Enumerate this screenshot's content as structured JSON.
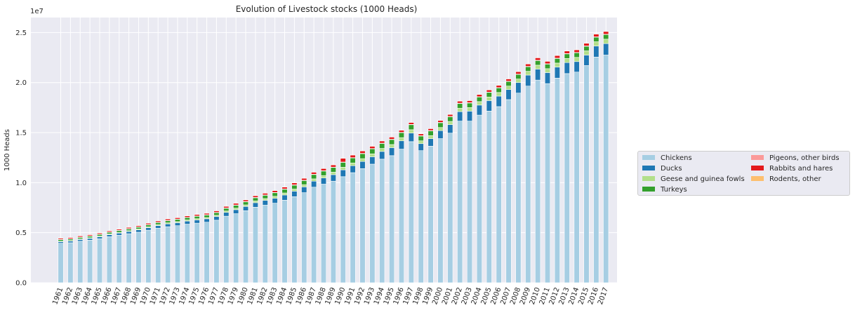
{
  "chart_data": {
    "type": "bar",
    "stacked": true,
    "title": "Evolution of Livestock stocks (1000 Heads)",
    "xlabel": "",
    "ylabel": "1000 Heads",
    "y_scale_label": "1e7",
    "ylim": [
      0,
      26500000
    ],
    "yticks": [
      0,
      5000000,
      10000000,
      15000000,
      20000000,
      25000000
    ],
    "ytick_labels": [
      "0.0",
      "0.5",
      "1.0",
      "1.5",
      "2.0",
      "2.5"
    ],
    "grid": true,
    "legend_position": "right",
    "categories": [
      "1961",
      "1962",
      "1963",
      "1964",
      "1965",
      "1966",
      "1967",
      "1968",
      "1969",
      "1970",
      "1971",
      "1972",
      "1973",
      "1974",
      "1975",
      "1976",
      "1977",
      "1978",
      "1979",
      "1980",
      "1981",
      "1982",
      "1983",
      "1984",
      "1985",
      "1986",
      "1987",
      "1988",
      "1989",
      "1990",
      "1991",
      "1992",
      "1993",
      "1994",
      "1995",
      "1996",
      "1997",
      "1998",
      "1999",
      "2000",
      "2001",
      "2002",
      "2003",
      "2004",
      "2005",
      "2006",
      "2007",
      "2008",
      "2009",
      "2010",
      "2011",
      "2012",
      "2013",
      "2014",
      "2015",
      "2016",
      "2017"
    ],
    "series": [
      {
        "name": "Chickens",
        "color": "#a6cee3",
        "values": [
          3950000,
          4000000,
          4150000,
          4250000,
          4400000,
          4600000,
          4750000,
          4900000,
          5050000,
          5250000,
          5450000,
          5600000,
          5700000,
          5850000,
          5950000,
          6050000,
          6250000,
          6650000,
          6900000,
          7200000,
          7550000,
          7750000,
          7950000,
          8250000,
          8600000,
          9000000,
          9550000,
          9850000,
          10150000,
          10600000,
          11000000,
          11400000,
          11850000,
          12350000,
          12700000,
          13350000,
          14100000,
          13200000,
          13650000,
          14400000,
          14950000,
          16150000,
          16150000,
          16750000,
          17150000,
          17600000,
          18300000,
          18950000,
          19650000,
          20250000,
          19900000,
          20450000,
          20900000,
          21050000,
          21700000,
          22550000,
          22750000
        ]
      },
      {
        "name": "Ducks",
        "color": "#1f78b4",
        "values": [
          150000,
          160000,
          170000,
          180000,
          190000,
          200000,
          210000,
          220000,
          230000,
          250000,
          260000,
          280000,
          300000,
          310000,
          330000,
          340000,
          360000,
          380000,
          400000,
          420000,
          450000,
          480000,
          500000,
          520000,
          550000,
          580000,
          600000,
          620000,
          650000,
          680000,
          700000,
          720000,
          740000,
          770000,
          800000,
          830000,
          860000,
          700000,
          750000,
          800000,
          850000,
          950000,
          1000000,
          1000000,
          1050000,
          1050000,
          1000000,
          1050000,
          1100000,
          1100000,
          1100000,
          1100000,
          1100000,
          1050000,
          1050000,
          1100000,
          1150000
        ]
      },
      {
        "name": "Geese and guinea fowls",
        "color": "#b2df8a",
        "values": [
          50000,
          55000,
          60000,
          65000,
          70000,
          75000,
          80000,
          85000,
          90000,
          95000,
          100000,
          105000,
          110000,
          115000,
          120000,
          125000,
          130000,
          140000,
          150000,
          160000,
          170000,
          180000,
          190000,
          200000,
          210000,
          220000,
          230000,
          240000,
          250000,
          260000,
          270000,
          280000,
          290000,
          300000,
          310000,
          320000,
          330000,
          280000,
          300000,
          310000,
          320000,
          340000,
          350000,
          350000,
          360000,
          360000,
          350000,
          360000,
          380000,
          390000,
          390000,
          400000,
          410000,
          420000,
          420000,
          430000,
          440000
        ]
      },
      {
        "name": "Turkeys",
        "color": "#33a02c",
        "values": [
          150000,
          150000,
          150000,
          160000,
          160000,
          160000,
          170000,
          170000,
          180000,
          190000,
          200000,
          210000,
          220000,
          230000,
          240000,
          250000,
          260000,
          270000,
          290000,
          300000,
          320000,
          330000,
          350000,
          370000,
          390000,
          410000,
          430000,
          450000,
          470000,
          490000,
          500000,
          500000,
          500000,
          500000,
          500000,
          500000,
          500000,
          480000,
          480000,
          480000,
          470000,
          470000,
          460000,
          460000,
          460000,
          460000,
          460000,
          460000,
          460000,
          460000,
          460000,
          460000,
          460000,
          460000,
          460000,
          460000,
          460000
        ]
      },
      {
        "name": "Pigeons, other birds",
        "color": "#fb9a99",
        "values": [
          30000,
          30000,
          30000,
          30000,
          30000,
          30000,
          30000,
          30000,
          30000,
          30000,
          30000,
          30000,
          30000,
          30000,
          30000,
          30000,
          30000,
          30000,
          30000,
          30000,
          30000,
          30000,
          30000,
          30000,
          30000,
          30000,
          30000,
          30000,
          30000,
          30000,
          30000,
          30000,
          30000,
          30000,
          30000,
          30000,
          30000,
          30000,
          30000,
          30000,
          30000,
          30000,
          30000,
          30000,
          30000,
          30000,
          30000,
          30000,
          30000,
          30000,
          30000,
          30000,
          30000,
          30000,
          30000,
          30000,
          30000
        ]
      },
      {
        "name": "Rabbits and hares",
        "color": "#e31a1c",
        "values": [
          120000,
          120000,
          120000,
          120000,
          120000,
          120000,
          120000,
          130000,
          130000,
          130000,
          140000,
          140000,
          140000,
          150000,
          150000,
          150000,
          160000,
          160000,
          170000,
          170000,
          180000,
          180000,
          190000,
          190000,
          200000,
          200000,
          210000,
          220000,
          230000,
          380000,
          260000,
          240000,
          230000,
          220000,
          220000,
          210000,
          200000,
          190000,
          190000,
          200000,
          200000,
          210000,
          210000,
          220000,
          220000,
          230000,
          230000,
          240000,
          240000,
          250000,
          250000,
          260000,
          260000,
          270000,
          270000,
          280000,
          280000
        ]
      },
      {
        "name": "Rodents, other",
        "color": "#fdbf6f",
        "values": [
          5000,
          5000,
          5000,
          5000,
          5000,
          5000,
          5000,
          5000,
          5000,
          5000,
          5000,
          5000,
          5000,
          5000,
          5000,
          5000,
          5000,
          5000,
          5000,
          5000,
          5000,
          5000,
          5000,
          5000,
          5000,
          5000,
          5000,
          5000,
          5000,
          5000,
          5000,
          5000,
          5000,
          5000,
          5000,
          5000,
          5000,
          5000,
          5000,
          5000,
          5000,
          5000,
          5000,
          5000,
          5000,
          5000,
          5000,
          5000,
          5000,
          5000,
          5000,
          5000,
          5000,
          5000,
          5000,
          5000,
          5000
        ]
      }
    ]
  }
}
